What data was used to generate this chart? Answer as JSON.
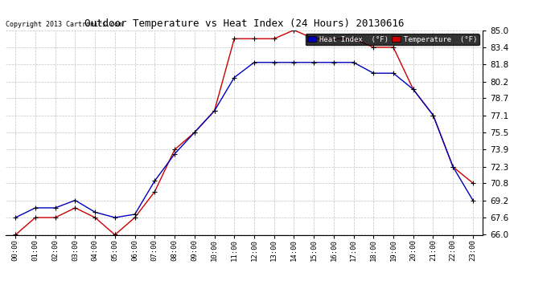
{
  "title": "Outdoor Temperature vs Heat Index (24 Hours) 20130616",
  "copyright": "Copyright 2013 Cartronics.com",
  "hours": [
    "00:00",
    "01:00",
    "02:00",
    "03:00",
    "04:00",
    "05:00",
    "06:00",
    "07:00",
    "08:00",
    "09:00",
    "10:00",
    "11:00",
    "12:00",
    "13:00",
    "14:00",
    "15:00",
    "16:00",
    "17:00",
    "18:00",
    "19:00",
    "20:00",
    "21:00",
    "22:00",
    "23:00"
  ],
  "heat_index": [
    67.6,
    68.5,
    68.5,
    69.2,
    68.1,
    67.6,
    67.9,
    71.0,
    73.5,
    75.5,
    77.5,
    80.6,
    82.0,
    82.0,
    82.0,
    82.0,
    82.0,
    82.0,
    81.0,
    81.0,
    79.5,
    77.1,
    72.3,
    69.2
  ],
  "temperature": [
    66.0,
    67.6,
    67.6,
    68.5,
    67.6,
    66.0,
    67.6,
    70.0,
    73.9,
    75.5,
    77.5,
    84.2,
    84.2,
    84.2,
    85.0,
    84.2,
    84.2,
    84.2,
    83.4,
    83.4,
    79.5,
    77.1,
    72.3,
    70.8
  ],
  "ylim": [
    66.0,
    85.0
  ],
  "yticks": [
    66.0,
    67.6,
    69.2,
    70.8,
    72.3,
    73.9,
    75.5,
    77.1,
    78.7,
    80.2,
    81.8,
    83.4,
    85.0
  ],
  "heat_index_color": "#0000bb",
  "temperature_color": "#cc0000",
  "bg_color": "#ffffff",
  "grid_color": "#bbbbbb",
  "legend_heat_bg": "#0000bb",
  "legend_temp_bg": "#cc0000",
  "legend_text_color": "#ffffff"
}
